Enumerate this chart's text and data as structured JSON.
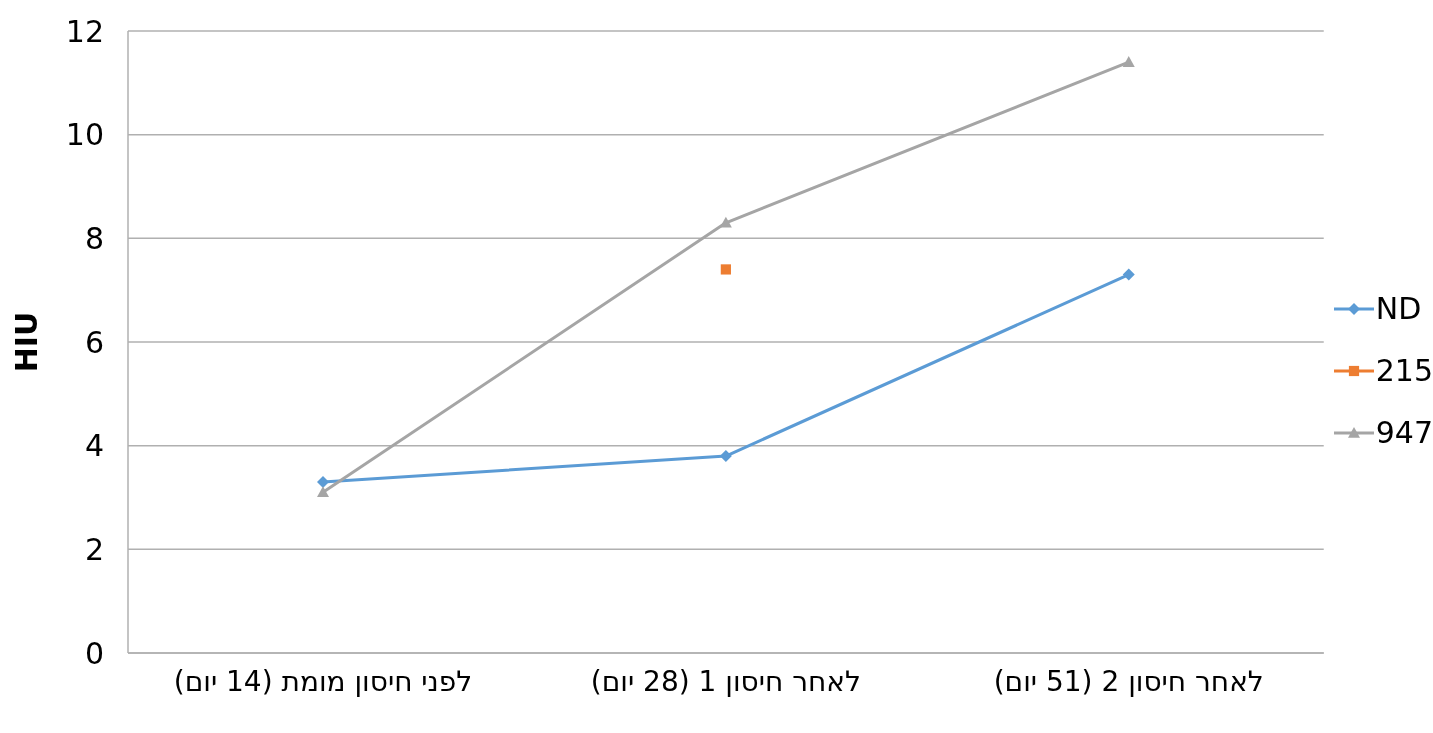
{
  "chart_data": {
    "type": "line",
    "ylabel": "HIU",
    "categories": [
      "לפני חיסון מומת (14 יום)",
      "לאחר חיסון 1 (28 יום)",
      "לאחר חיסון 2 (51 יום)"
    ],
    "series": [
      {
        "name": "ND",
        "color": "#5b9bd5",
        "marker": "diamond",
        "values": [
          3.3,
          3.8,
          7.3
        ]
      },
      {
        "name": "215",
        "color": "#ed7d31",
        "marker": "square",
        "values": [
          null,
          7.4,
          null
        ]
      },
      {
        "name": "947",
        "color": "#a5a5a5",
        "marker": "triangle",
        "values": [
          3.1,
          8.3,
          11.4
        ]
      }
    ],
    "ylim": [
      0,
      12
    ],
    "yticks": [
      0,
      2,
      4,
      6,
      8,
      10,
      12
    ],
    "grid": "y",
    "legend": "right"
  }
}
